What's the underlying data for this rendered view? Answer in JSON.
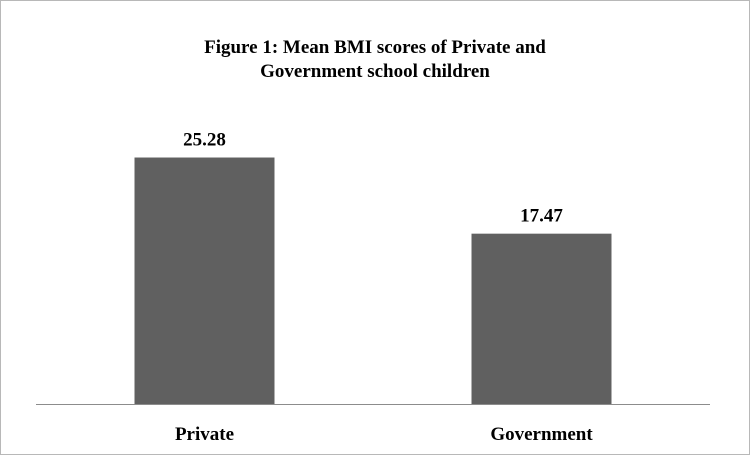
{
  "chart_data": {
    "type": "bar",
    "title_lines": [
      "Figure 1: Mean BMI scores of Private and",
      "Government school children"
    ],
    "categories": [
      "Private",
      "Government"
    ],
    "values": [
      25.28,
      17.47
    ],
    "value_labels": [
      "25.28",
      "17.47"
    ],
    "ylim": [
      0,
      32
    ],
    "grid": false,
    "legend": "none",
    "bar_color": "#606060",
    "axis_color": "#8c8c8c"
  }
}
